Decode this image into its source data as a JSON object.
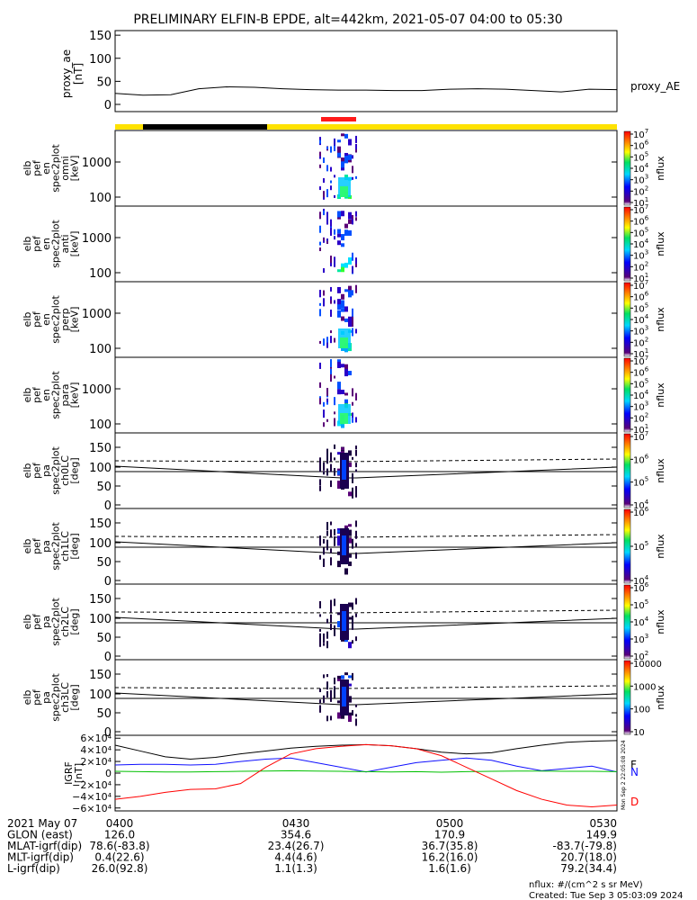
{
  "title": "PRELIMINARY ELFIN-B EPDE, alt=442km, 2021-05-07 04:00 to 05:30",
  "colors": {
    "state_bar_yellow": "#ffe200",
    "state_bar_black": "#000000",
    "science_zone_red": "#ff1a1a",
    "bx_blue": "#1010ff",
    "by_green": "#00c000",
    "bz_red": "#ff0000",
    "btot_black": "#000000"
  },
  "chart_data": [
    {
      "id": "proxy_ae",
      "type": "line",
      "ylabel": [
        "proxy_ae",
        "[nT]"
      ],
      "legend": "proxy_AE",
      "yticks": [
        "0",
        "50",
        "100",
        "150"
      ],
      "ylim": [
        0,
        160
      ],
      "x": [
        "04:00",
        "04:05",
        "04:10",
        "04:15",
        "04:20",
        "04:25",
        "04:30",
        "04:35",
        "04:40",
        "04:45",
        "04:50",
        "04:55",
        "05:00",
        "05:05",
        "05:10",
        "05:15",
        "05:20",
        "05:25",
        "05:30"
      ],
      "values": [
        24,
        20,
        21,
        34,
        38,
        37,
        34,
        32,
        31,
        31,
        30,
        30,
        33,
        34,
        33,
        30,
        27,
        33,
        32
      ]
    },
    {
      "id": "omni",
      "type": "heatmap",
      "ylabel": [
        "elb",
        "pef",
        "en",
        "spec2plot",
        "omni",
        "[keV]"
      ],
      "yticks": [
        "100",
        "1000"
      ],
      "cbar_ticks": [
        "10",
        "10",
        "10",
        "10",
        "10",
        "10",
        "10"
      ],
      "cbar_exp": [
        "1",
        "2",
        "3",
        "4",
        "5",
        "6",
        "7"
      ],
      "cbar_label": "nflux"
    },
    {
      "id": "anti",
      "type": "heatmap",
      "ylabel": [
        "elb",
        "pef",
        "en",
        "spec2plot",
        "anti",
        "[keV]"
      ],
      "yticks": [
        "100",
        "1000"
      ],
      "cbar_ticks": [
        "10",
        "10",
        "10",
        "10",
        "10",
        "10",
        "10"
      ],
      "cbar_exp": [
        "1",
        "2",
        "3",
        "4",
        "5",
        "6",
        "7"
      ],
      "cbar_label": "nflux"
    },
    {
      "id": "perp",
      "type": "heatmap",
      "ylabel": [
        "elb",
        "pef",
        "en",
        "spec2plot",
        "perp",
        "[keV]"
      ],
      "yticks": [
        "100",
        "1000"
      ],
      "cbar_ticks": [
        "10",
        "10",
        "10",
        "10",
        "10",
        "10",
        "10"
      ],
      "cbar_exp": [
        "1",
        "2",
        "3",
        "4",
        "5",
        "6",
        "7"
      ],
      "cbar_label": "nflux"
    },
    {
      "id": "para",
      "type": "heatmap",
      "ylabel": [
        "elb",
        "pef",
        "en",
        "spec2plot",
        "para",
        "[keV]"
      ],
      "yticks": [
        "100",
        "1000"
      ],
      "cbar_ticks": [
        "10",
        "10",
        "10",
        "10",
        "10",
        "10",
        "10"
      ],
      "cbar_exp": [
        "1",
        "2",
        "3",
        "4",
        "5",
        "6",
        "7"
      ],
      "cbar_label": "nflux"
    },
    {
      "id": "ch0",
      "type": "heatmap",
      "ylabel": [
        "elb",
        "pef",
        "pa",
        "spec2plot",
        "ch0LC",
        "[deg]"
      ],
      "yticks": [
        "0",
        "50",
        "100",
        "150"
      ],
      "cbar_ticks": [
        "10",
        "10",
        "10",
        "10"
      ],
      "cbar_exp": [
        "4",
        "5",
        "6",
        "7"
      ],
      "cbar_label": "nflux"
    },
    {
      "id": "ch1",
      "type": "heatmap",
      "ylabel": [
        "elb",
        "pef",
        "pa",
        "spec2plot",
        "ch1LC",
        "[deg]"
      ],
      "yticks": [
        "0",
        "50",
        "100",
        "150"
      ],
      "cbar_ticks": [
        "10",
        "10",
        "10"
      ],
      "cbar_exp": [
        "4",
        "5",
        "6"
      ],
      "cbar_label": "nflux"
    },
    {
      "id": "ch2",
      "type": "heatmap",
      "ylabel": [
        "elb",
        "pef",
        "pa",
        "spec2plot",
        "ch2LC",
        "[deg]"
      ],
      "yticks": [
        "0",
        "50",
        "100",
        "150"
      ],
      "cbar_ticks": [
        "10",
        "10",
        "10",
        "10",
        "10"
      ],
      "cbar_exp": [
        "2",
        "3",
        "4",
        "5",
        "6"
      ],
      "cbar_label": "nflux"
    },
    {
      "id": "ch3",
      "type": "heatmap",
      "ylabel": [
        "elb",
        "pef",
        "pa",
        "spec2plot",
        "ch3LC",
        "[deg]"
      ],
      "yticks": [
        "0",
        "50",
        "100",
        "150"
      ],
      "cbar_ticks": [
        "10",
        "100",
        "1000",
        "10000"
      ],
      "cbar_label": "nflux"
    },
    {
      "id": "igrf",
      "type": "line",
      "ylabel": [
        "IGRF",
        "[nT]"
      ],
      "yticks": [
        "6×10⁴",
        "4×10⁴",
        "2×10⁴",
        "0",
        "−2×10⁴",
        "−4×10⁴",
        "−6×10⁴"
      ],
      "ylim": [
        -65000,
        65000
      ],
      "x_frac": [
        0,
        0.05,
        0.1,
        0.15,
        0.2,
        0.25,
        0.3,
        0.35,
        0.4,
        0.45,
        0.5,
        0.55,
        0.6,
        0.65,
        0.7,
        0.75,
        0.8,
        0.85,
        0.9,
        0.95,
        1
      ],
      "series": [
        {
          "name": "F",
          "color": "#000000",
          "values": [
            48000,
            38000,
            28000,
            24000,
            27000,
            33000,
            38000,
            43000,
            46000,
            48000,
            49000,
            47000,
            42000,
            36000,
            33000,
            35000,
            42000,
            48000,
            53000,
            55000,
            56000
          ]
        },
        {
          "name": "N",
          "color": "#1010ff",
          "values": [
            14000,
            15000,
            15000,
            14000,
            15000,
            20000,
            24000,
            26000,
            18000,
            10000,
            2000,
            10000,
            18000,
            22000,
            26000,
            22000,
            12000,
            4000,
            8000,
            12000,
            2000
          ]
        },
        {
          "name": "",
          "color": "#00c000",
          "values": [
            3000,
            2500,
            2000,
            2000,
            2500,
            3000,
            3500,
            4000,
            3500,
            3000,
            2500,
            2000,
            2500,
            1500,
            2500,
            3000,
            3500,
            3500,
            3000,
            3000,
            2500
          ]
        },
        {
          "name": "D",
          "color": "#ff0000",
          "values": [
            -45000,
            -40000,
            -33000,
            -28000,
            -27000,
            -18000,
            10000,
            33000,
            42000,
            46000,
            49000,
            47000,
            42000,
            30000,
            10000,
            -10000,
            -30000,
            -45000,
            -55000,
            -58000,
            -55000
          ]
        }
      ]
    }
  ],
  "ephemeris": {
    "rows": [
      {
        "label": "2021 May 07",
        "values": [
          "0400",
          "0430",
          "0500",
          "0530"
        ]
      },
      {
        "label": "GLON (east)",
        "values": [
          "126.0",
          "354.6",
          "170.9",
          "149.9"
        ]
      },
      {
        "label": "MLAT-igrf(dip)",
        "values": [
          "78.6(-83.8)",
          "23.4(26.7)",
          "36.7(35.8)",
          "-83.7(-79.8)"
        ]
      },
      {
        "label": "MLT-igrf(dip)",
        "values": [
          "0.4(22.6)",
          "4.4(4.6)",
          "16.2(16.0)",
          "20.7(18.0)"
        ]
      },
      {
        "label": "L-igrf(dip)",
        "values": [
          "26.0(92.8)",
          "1.1(1.3)",
          "1.6(1.6)",
          "79.2(34.4)"
        ]
      }
    ]
  },
  "stamp": "Mon Sep 2 22:05:08 2024",
  "footer": {
    "units": "nflux: #/(cm^2 s sr MeV)",
    "created": "Created: Tue Sep  3 05:03:09 2024"
  }
}
